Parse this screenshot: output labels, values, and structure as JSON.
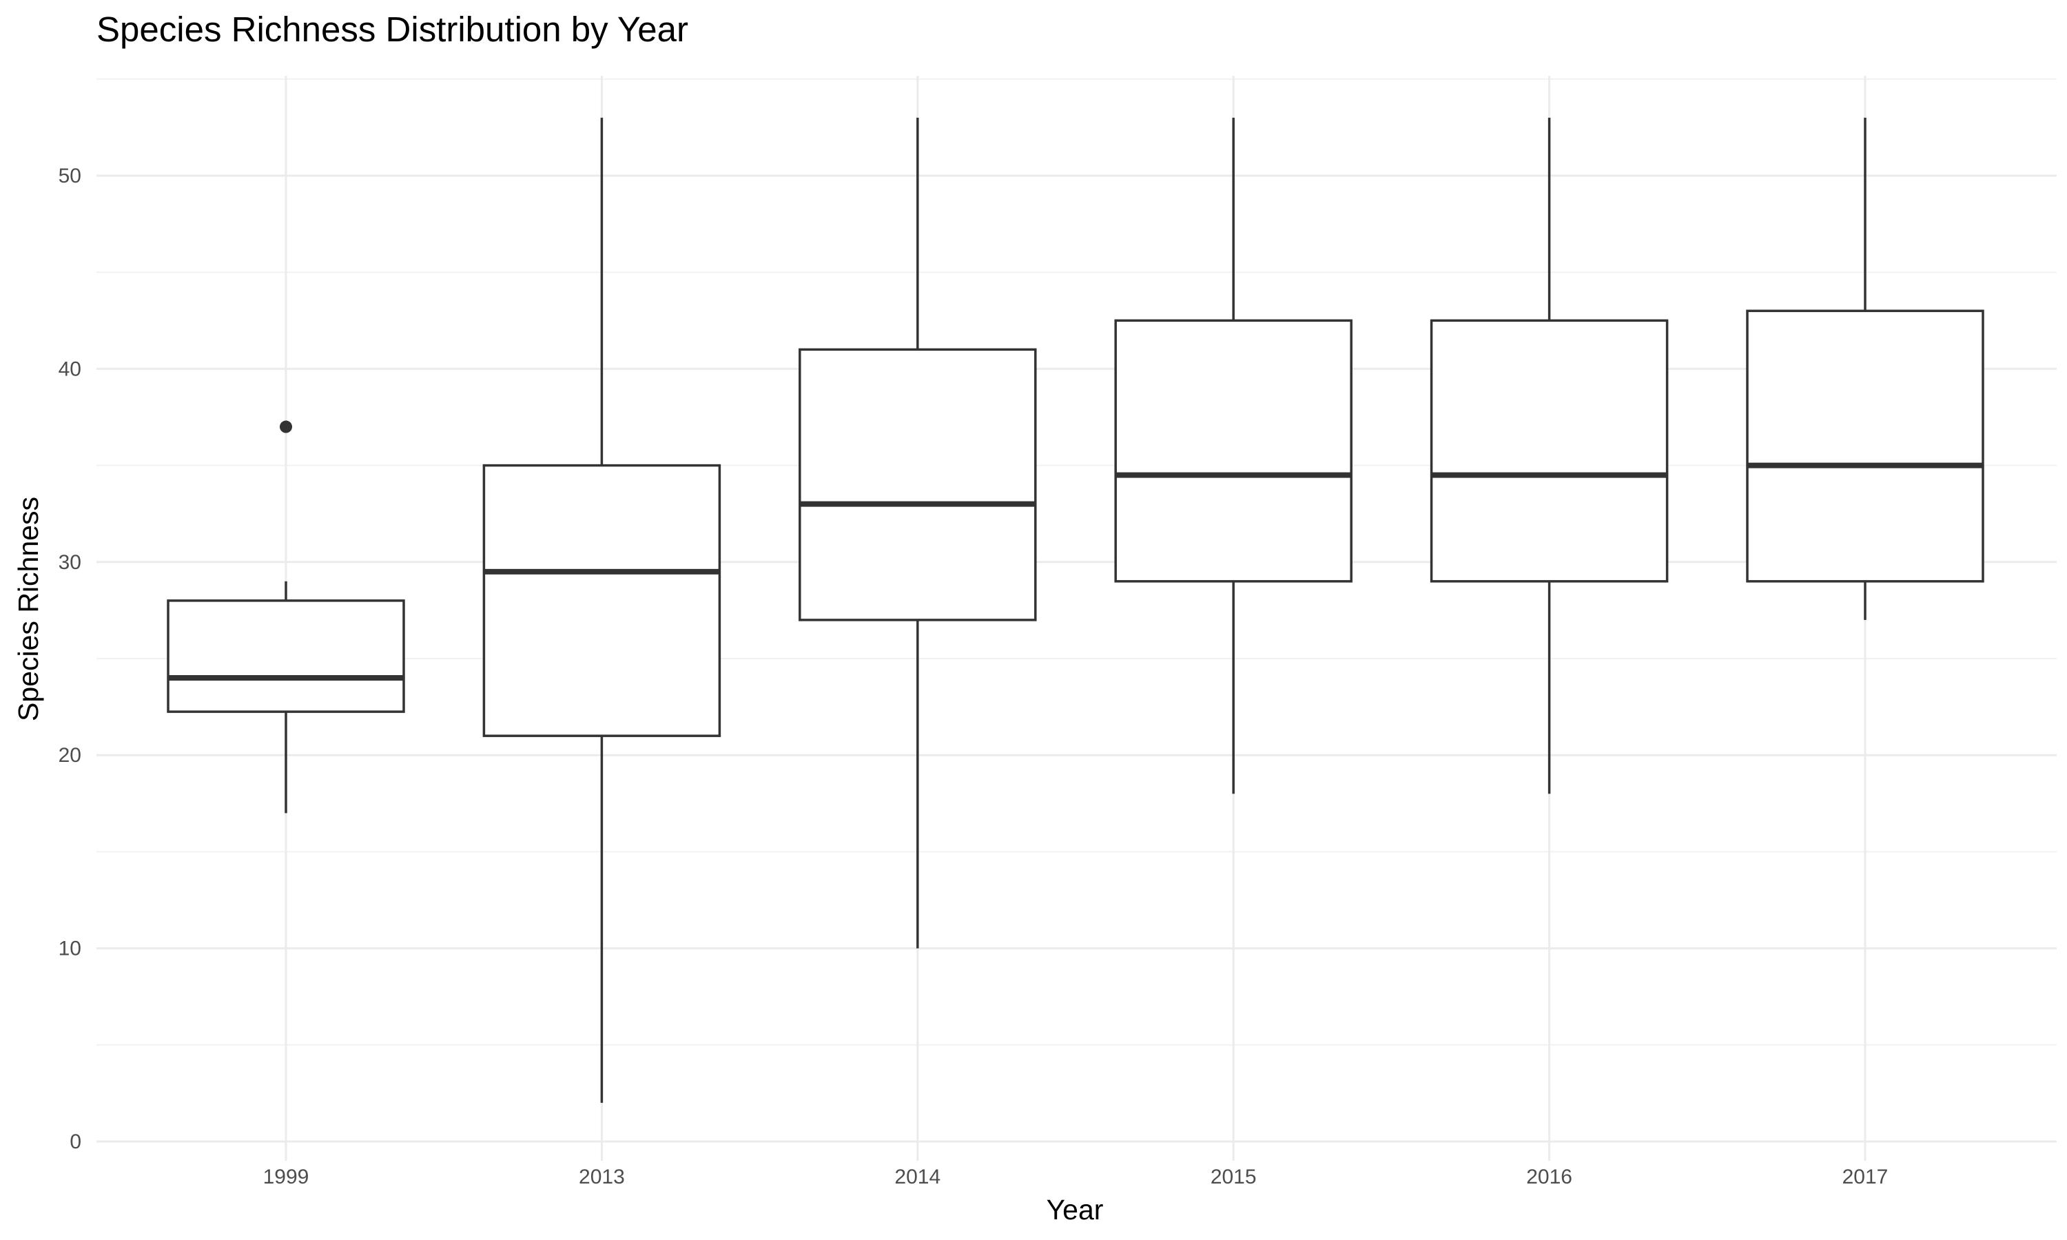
{
  "chart_data": {
    "type": "boxplot",
    "title": "Species Richness Distribution by Year",
    "xlabel": "Year",
    "ylabel": "Species Richness",
    "ylim": [
      0,
      55
    ],
    "yticks": [
      0,
      10,
      20,
      30,
      40,
      50
    ],
    "grid": true,
    "categories": [
      "1999",
      "2013",
      "2014",
      "2015",
      "2016",
      "2017"
    ],
    "boxes": [
      {
        "category": "1999",
        "whisker_low": 17,
        "q1": 22.25,
        "median": 24,
        "q3": 28,
        "whisker_high": 29,
        "outliers": [
          37
        ]
      },
      {
        "category": "2013",
        "whisker_low": 2,
        "q1": 21,
        "median": 29.5,
        "q3": 35,
        "whisker_high": 53,
        "outliers": []
      },
      {
        "category": "2014",
        "whisker_low": 10,
        "q1": 27,
        "median": 33,
        "q3": 41,
        "whisker_high": 53,
        "outliers": []
      },
      {
        "category": "2015",
        "whisker_low": 18,
        "q1": 29,
        "median": 34.5,
        "q3": 42.5,
        "whisker_high": 53,
        "outliers": []
      },
      {
        "category": "2016",
        "whisker_low": 18,
        "q1": 29,
        "median": 34.5,
        "q3": 42.5,
        "whisker_high": 53,
        "outliers": []
      },
      {
        "category": "2017",
        "whisker_low": 27,
        "q1": 29,
        "median": 35,
        "q3": 43,
        "whisker_high": 53,
        "outliers": []
      }
    ],
    "colors": {
      "box_stroke": "#333333",
      "box_fill": "#ffffff",
      "grid_major": "#ebebeb",
      "grid_minor": "#f2f2f2",
      "tick_text": "#4d4d4d",
      "title_text": "#000000"
    }
  }
}
